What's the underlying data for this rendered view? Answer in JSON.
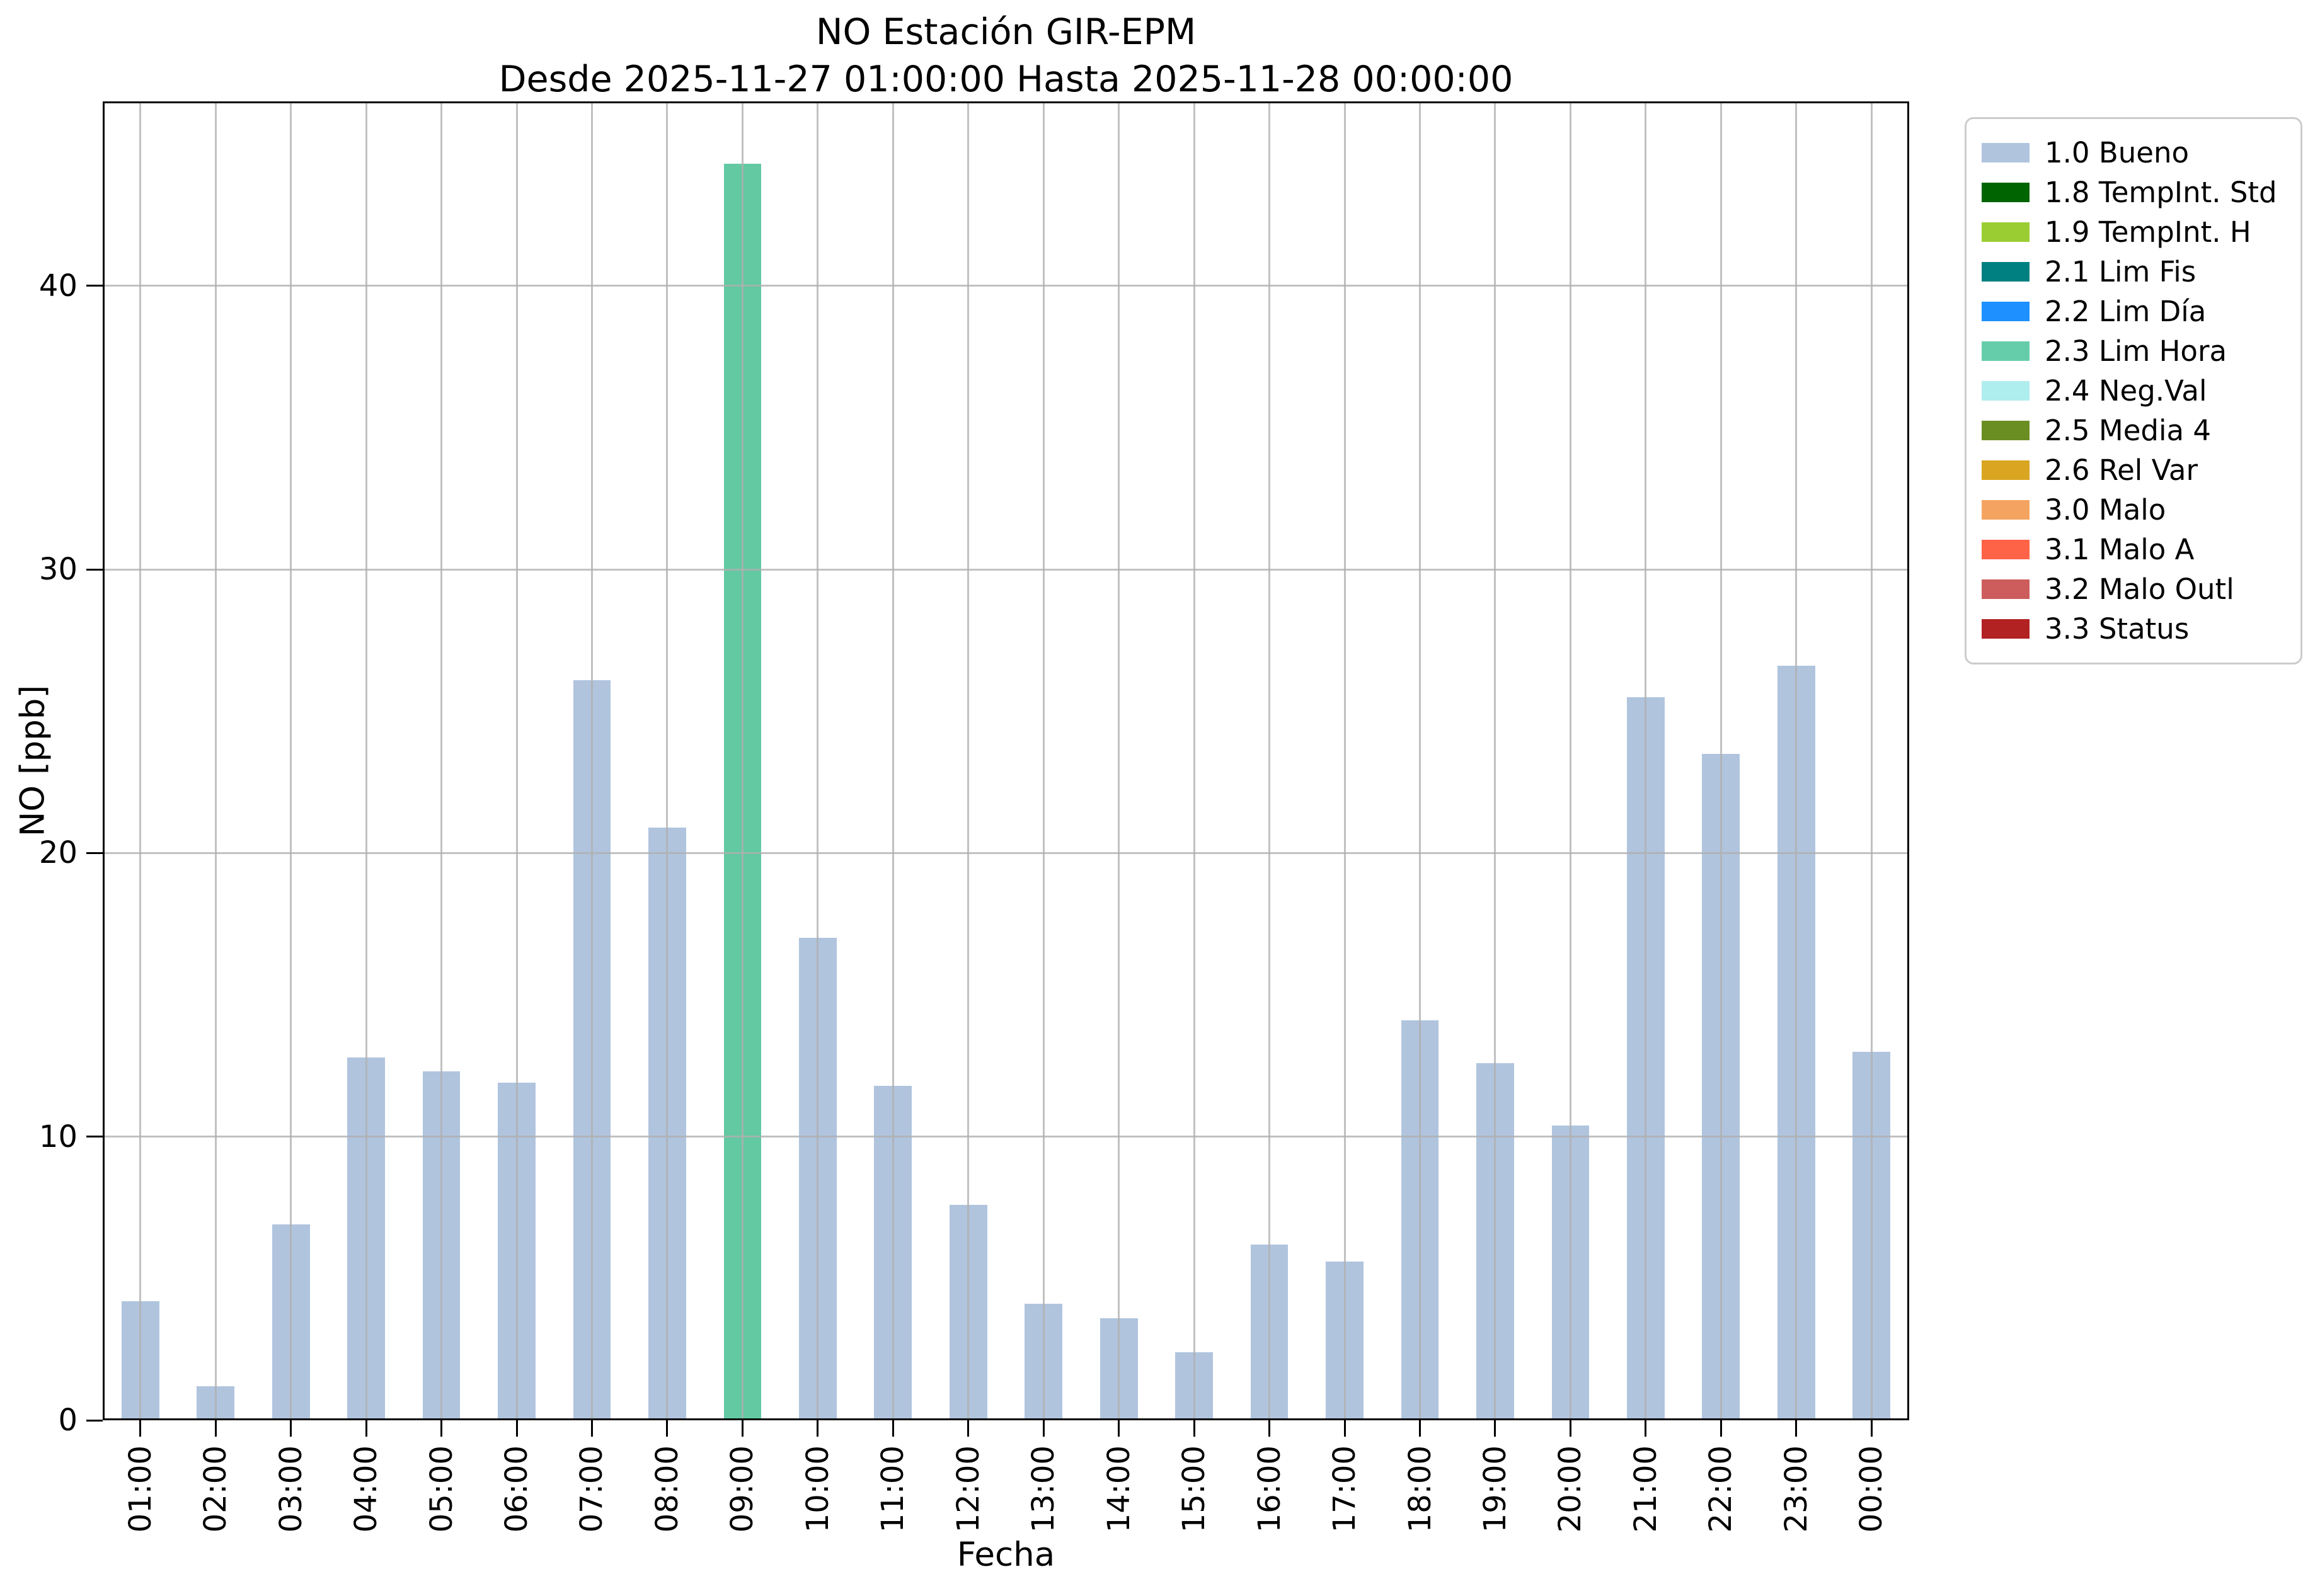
{
  "figure": {
    "title_line1": "NO Estación GIR-EPM",
    "title_line2": "Desde 2025-11-27 01:00:00 Hasta 2025-11-28 00:00:00",
    "xlabel": "Fecha",
    "ylabel": "NO [ppb]"
  },
  "chart_data": {
    "type": "bar",
    "title": "NO Estación GIR-EPM",
    "subtitle": "Desde 2025-11-27 01:00:00 Hasta 2025-11-28 00:00:00",
    "xlabel": "Fecha",
    "ylabel": "NO [ppb]",
    "categories": [
      "01:00",
      "02:00",
      "03:00",
      "04:00",
      "05:00",
      "06:00",
      "07:00",
      "08:00",
      "09:00",
      "10:00",
      "11:00",
      "12:00",
      "13:00",
      "14:00",
      "15:00",
      "16:00",
      "17:00",
      "18:00",
      "19:00",
      "20:00",
      "21:00",
      "22:00",
      "23:00",
      "00:00"
    ],
    "values": [
      4.2,
      1.2,
      6.9,
      12.8,
      12.3,
      11.9,
      26.1,
      20.9,
      44.3,
      17.0,
      11.8,
      7.6,
      4.1,
      3.6,
      2.4,
      6.2,
      5.6,
      14.1,
      12.6,
      10.4,
      25.5,
      23.5,
      26.6,
      13.0
    ],
    "statuses": [
      "1.0 Bueno",
      "1.0 Bueno",
      "1.0 Bueno",
      "1.0 Bueno",
      "1.0 Bueno",
      "1.0 Bueno",
      "1.0 Bueno",
      "1.0 Bueno",
      "2.3 Lim Hora",
      "1.0 Bueno",
      "1.0 Bueno",
      "1.0 Bueno",
      "1.0 Bueno",
      "1.0 Bueno",
      "1.0 Bueno",
      "1.0 Bueno",
      "1.0 Bueno",
      "1.0 Bueno",
      "1.0 Bueno",
      "1.0 Bueno",
      "1.0 Bueno",
      "1.0 Bueno",
      "1.0 Bueno",
      "1.0 Bueno"
    ],
    "bar_colors": [
      "#b0c4de",
      "#b0c4de",
      "#b0c4de",
      "#b0c4de",
      "#b0c4de",
      "#b0c4de",
      "#b0c4de",
      "#b0c4de",
      "#62c9a2",
      "#b0c4de",
      "#b0c4de",
      "#b0c4de",
      "#b0c4de",
      "#b0c4de",
      "#b0c4de",
      "#b0c4de",
      "#b0c4de",
      "#b0c4de",
      "#b0c4de",
      "#b0c4de",
      "#b0c4de",
      "#b0c4de",
      "#b0c4de",
      "#b0c4de"
    ],
    "ylim": [
      0,
      46.5
    ],
    "yticks": [
      0,
      10,
      20,
      30,
      40
    ],
    "grid": true,
    "bar_width_fraction": 0.5,
    "legend_position": "outside upper right",
    "legend": [
      {
        "label": "1.0 Bueno",
        "color": "#b0c4de"
      },
      {
        "label": "1.8 TempInt. Std",
        "color": "#006400"
      },
      {
        "label": "1.9 TempInt. H",
        "color": "#9acd32"
      },
      {
        "label": "2.1 Lim Fis",
        "color": "#008080"
      },
      {
        "label": "2.2 Lim Día",
        "color": "#1e90ff"
      },
      {
        "label": "2.3 Lim Hora",
        "color": "#66cdaa"
      },
      {
        "label": "2.4 Neg.Val",
        "color": "#afeeee"
      },
      {
        "label": "2.5 Media 4",
        "color": "#6b8e23"
      },
      {
        "label": "2.6 Rel Var",
        "color": "#daa520"
      },
      {
        "label": "3.0 Malo",
        "color": "#f4a460"
      },
      {
        "label": "3.1 Malo A",
        "color": "#ff6347"
      },
      {
        "label": "3.2 Malo Outl",
        "color": "#cd5c5c"
      },
      {
        "label": "3.3 Status",
        "color": "#b22222"
      }
    ]
  },
  "colors": {
    "background": "#ffffff",
    "bar_default": "#b0c4de",
    "bar_highlight": "#62c9a2",
    "grid": "#b0b0b0",
    "axis": "#000000",
    "legend_border": "#cccccc"
  }
}
